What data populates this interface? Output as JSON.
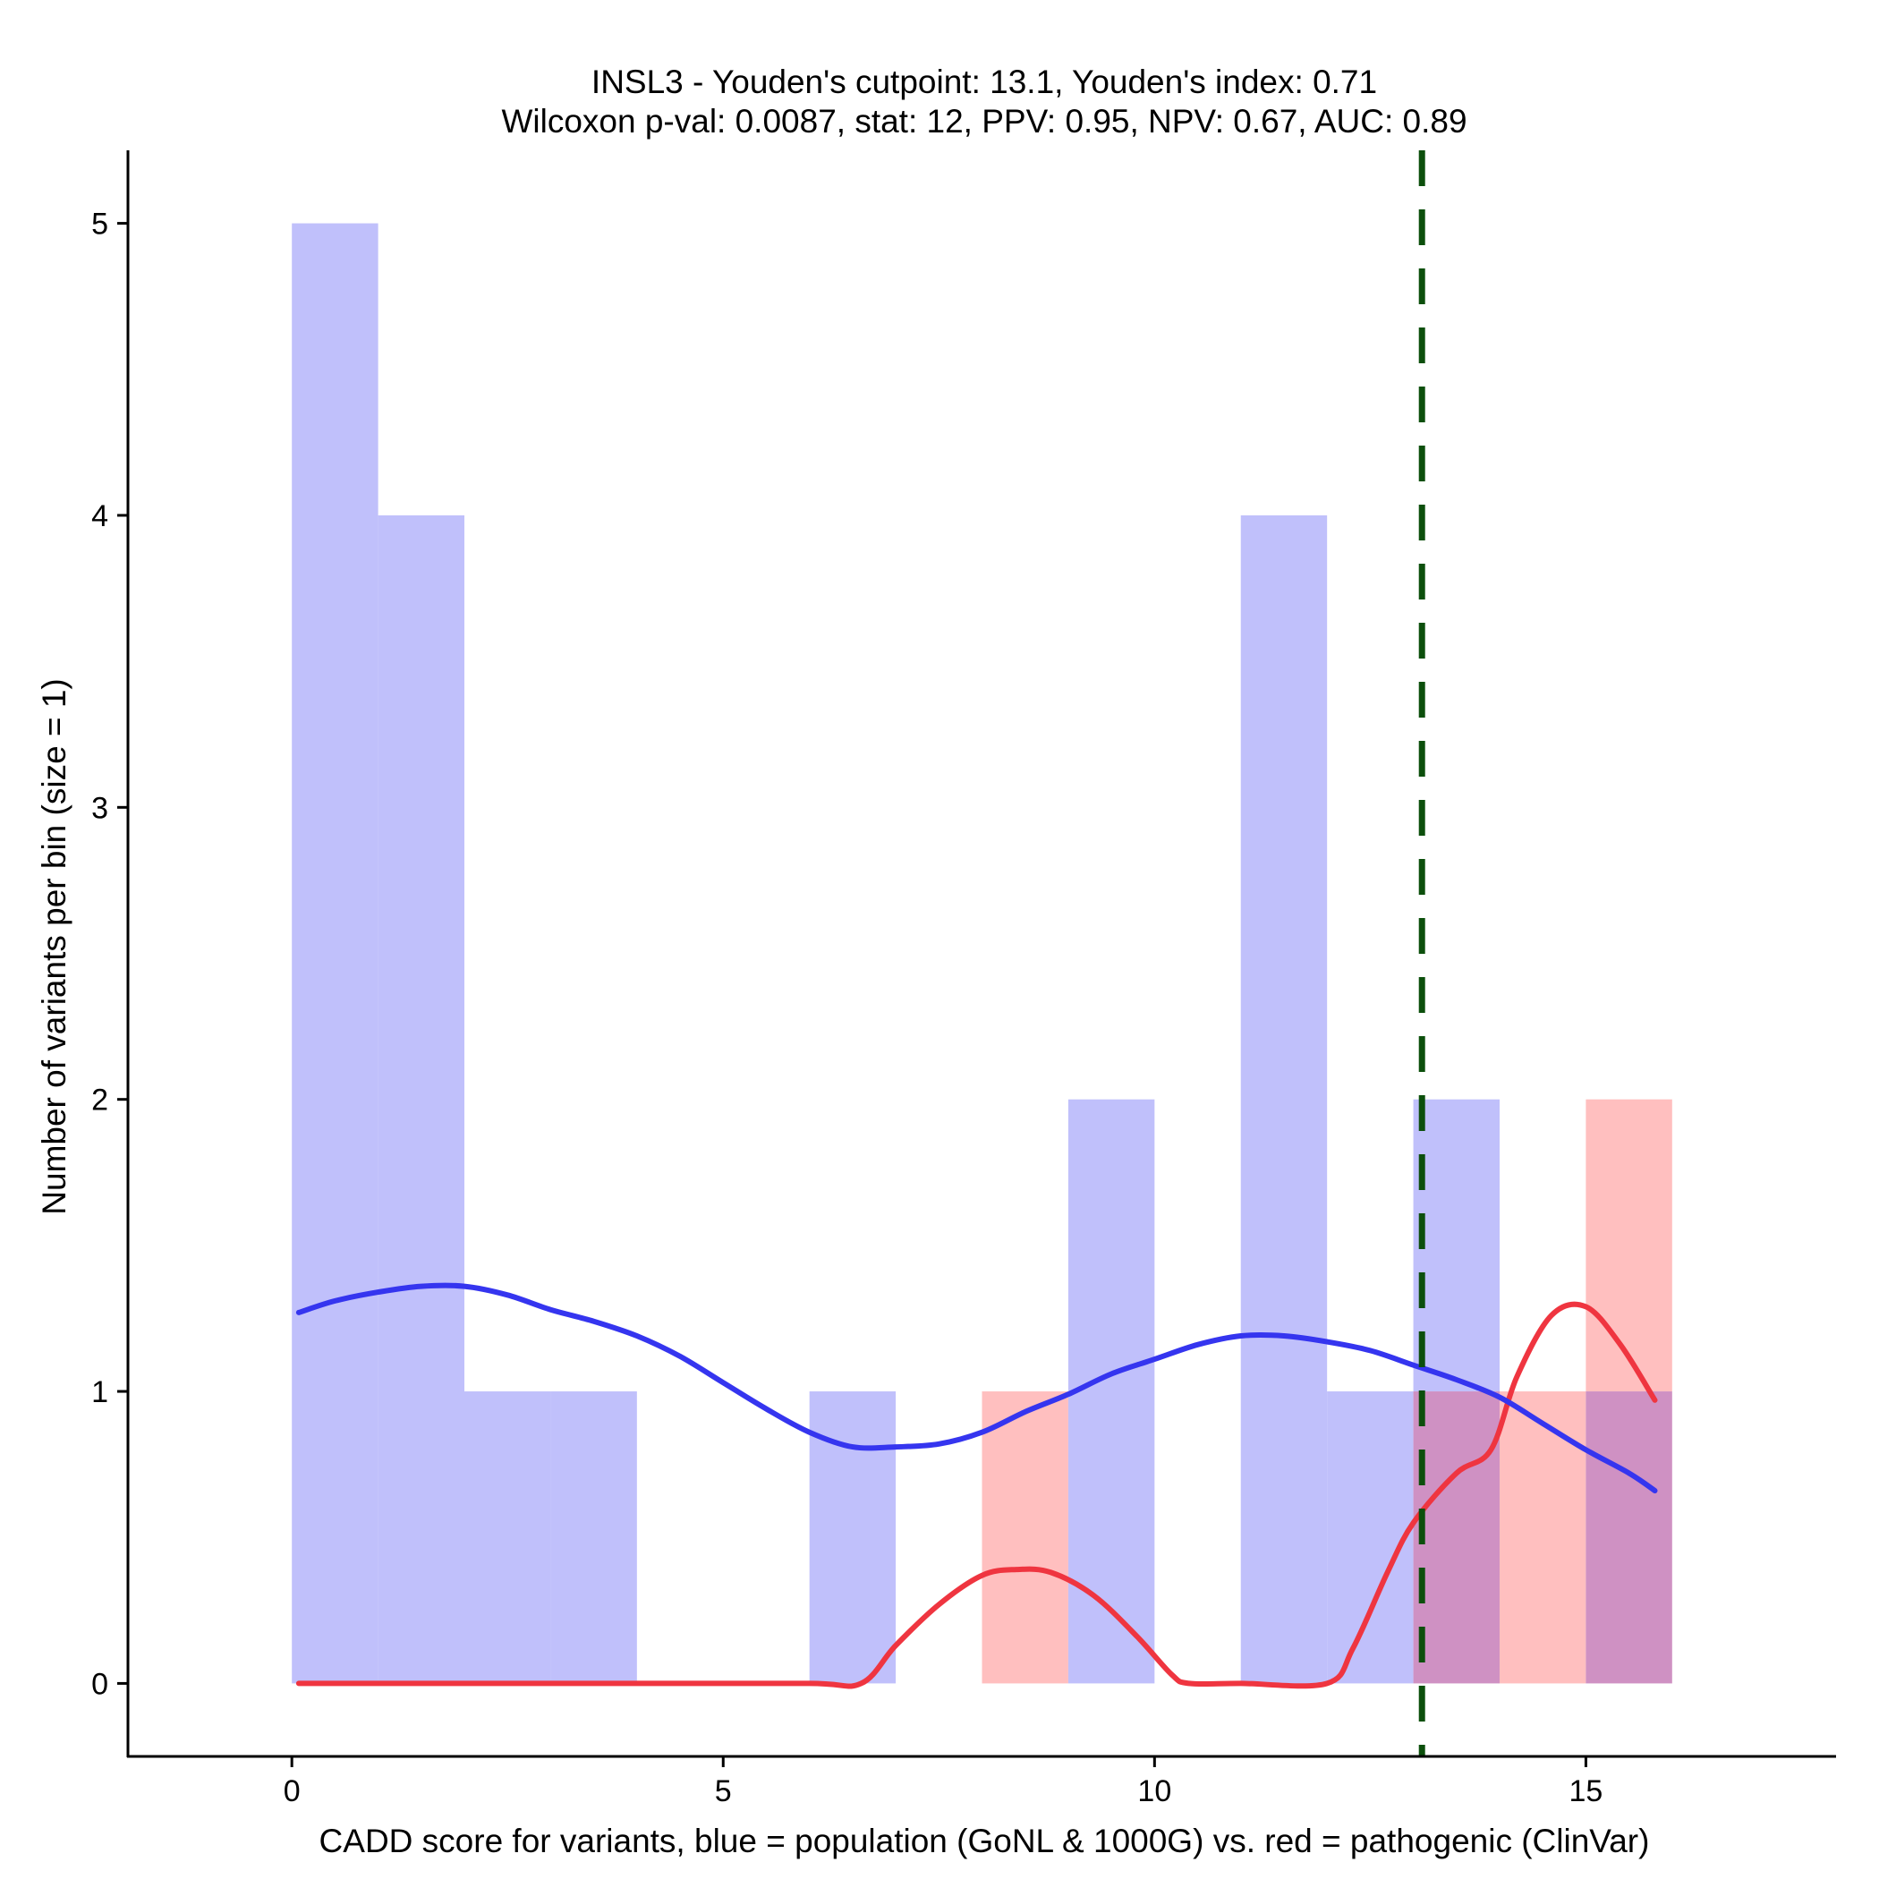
{
  "chart_data": {
    "type": "histogram",
    "title": [
      "INSL3 - Youden's cutpoint: 13.1, Youden's index: 0.71",
      "Wilcoxon p-val: 0.0087, stat: 12, PPV: 0.95, NPV: 0.67, AUC: 0.89"
    ],
    "xlabel": "CADD score for variants, blue = population (GoNL & 1000G) vs. red = pathogenic (ClinVar)",
    "ylabel": "Number of variants per bin (size = 1)",
    "xlim": [
      -1.9,
      17.9
    ],
    "ylim": [
      -0.25,
      5.25
    ],
    "x_ticks": [
      0,
      5,
      10,
      15
    ],
    "y_ticks": [
      0,
      1,
      2,
      3,
      4,
      5
    ],
    "bin_size": 1,
    "cutpoint": 13.1,
    "colors": {
      "population_bar": "#c0c0fb",
      "pathogenic_bar": "#ffbfbf",
      "overlap_bar": "#cf91c3",
      "population_line": "#3535ef",
      "pathogenic_line": "#ef3540",
      "cutpoint_line": "#0c4f0c"
    },
    "series": [
      {
        "name": "population (GoNL & 1000G)",
        "bins": [
          {
            "start": 0,
            "count": 5
          },
          {
            "start": 1,
            "count": 4
          },
          {
            "start": 2,
            "count": 1
          },
          {
            "start": 3,
            "count": 1
          },
          {
            "start": 6,
            "count": 1
          },
          {
            "start": 9,
            "count": 2
          },
          {
            "start": 11,
            "count": 4
          },
          {
            "start": 12,
            "count": 1
          },
          {
            "start": 13,
            "count": 2
          },
          {
            "start": 15,
            "count": 1
          }
        ],
        "density": {
          "x": [
            0.08,
            0.5,
            1.0,
            1.5,
            2.0,
            2.5,
            3.0,
            3.5,
            4.0,
            4.5,
            5.0,
            5.5,
            6.0,
            6.5,
            7.0,
            7.5,
            8.0,
            8.5,
            9.0,
            9.5,
            10.0,
            10.5,
            11.0,
            11.5,
            12.0,
            12.5,
            13.0,
            13.5,
            14.0,
            14.5,
            15.0,
            15.5,
            15.8
          ],
          "y": [
            1.27,
            1.31,
            1.34,
            1.36,
            1.36,
            1.33,
            1.28,
            1.24,
            1.19,
            1.12,
            1.03,
            0.94,
            0.86,
            0.81,
            0.81,
            0.82,
            0.86,
            0.93,
            0.99,
            1.06,
            1.11,
            1.16,
            1.19,
            1.19,
            1.17,
            1.14,
            1.09,
            1.04,
            0.98,
            0.89,
            0.8,
            0.72,
            0.66
          ]
        }
      },
      {
        "name": "pathogenic (ClinVar)",
        "bins": [
          {
            "start": 8,
            "count": 1
          },
          {
            "start": 13,
            "count": 1
          },
          {
            "start": 14,
            "count": 1
          },
          {
            "start": 15,
            "count": 2
          }
        ],
        "density": {
          "x": [
            0.08,
            2,
            4,
            6,
            6.6,
            7.0,
            7.5,
            8.0,
            8.4,
            8.8,
            9.3,
            9.8,
            10.2,
            10.4,
            11.0,
            12.0,
            12.3,
            12.7,
            13.0,
            13.5,
            13.9,
            14.2,
            14.6,
            15.0,
            15.4,
            15.8
          ],
          "y": [
            0,
            0,
            0,
            0,
            0,
            0.13,
            0.27,
            0.37,
            0.39,
            0.38,
            0.3,
            0.16,
            0.03,
            0,
            0,
            0,
            0.12,
            0.38,
            0.55,
            0.72,
            0.8,
            1.05,
            1.26,
            1.29,
            1.16,
            0.97
          ]
        }
      }
    ]
  }
}
